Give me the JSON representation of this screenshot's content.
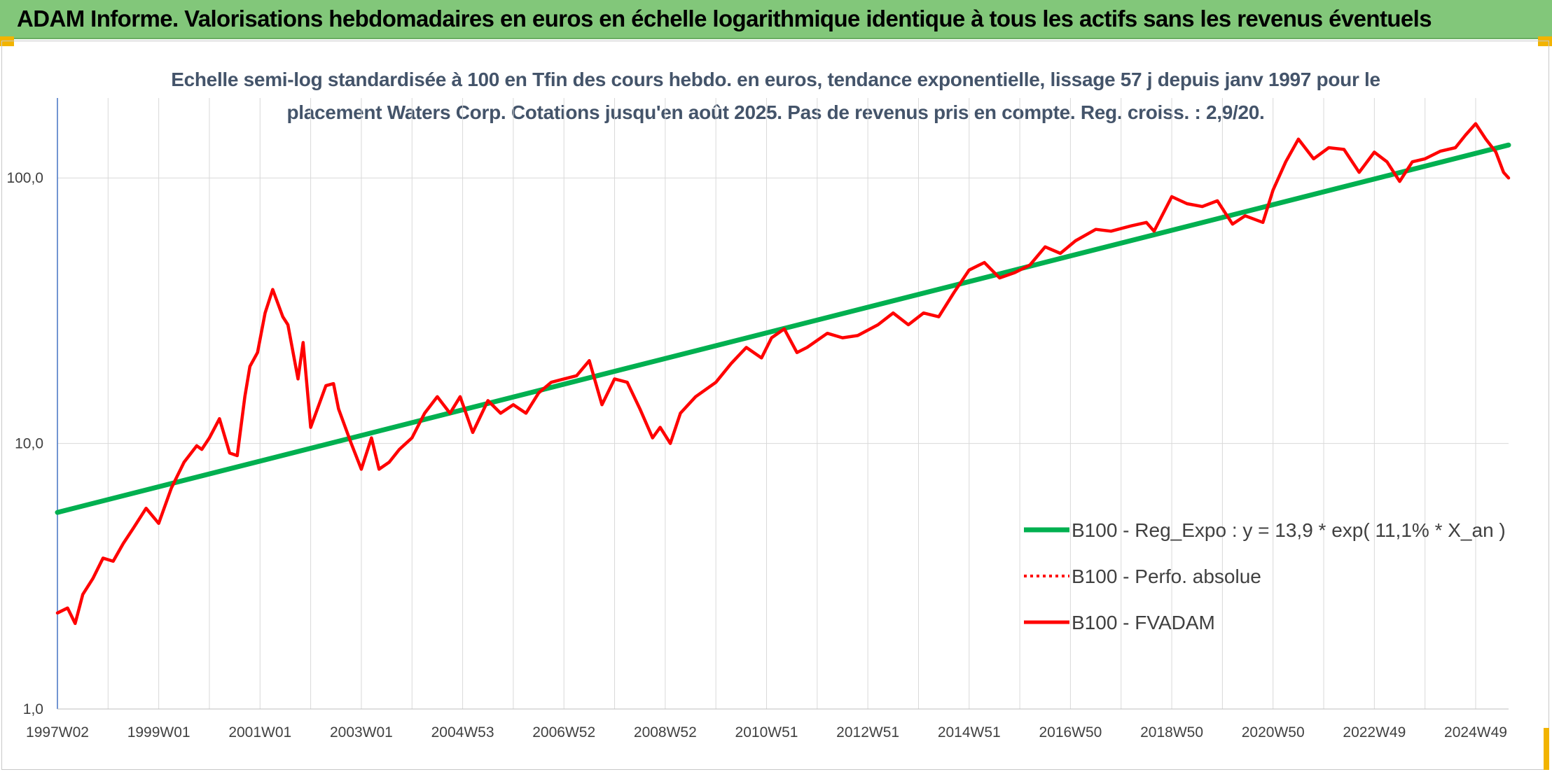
{
  "banner": {
    "title": "ADAM Informe. Valorisations hebdomadaires en euros en échelle logarithmique identique à tous les actifs sans les revenus éventuels"
  },
  "colors": {
    "banner_bg": "#82c77a",
    "accent_orange": "#f2b400",
    "fvadam_red": "#ff0000",
    "regression_green": "#00b050",
    "title_text": "#44546a"
  },
  "chart_data": {
    "type": "line",
    "title": "Echelle semi-log standardisée à 100 en Tfin des cours hebdo. en euros, tendance exponentielle, lissage 57 j depuis janv 1997 pour le placement Waters Corp. Cotations jusqu'en août 2025. Pas de revenus pris en compte. Reg. croiss. : 2,9/20.",
    "y_scale": "log",
    "ylim": [
      1,
      200
    ],
    "y_ticks": [
      {
        "value": 1,
        "label": "1,0"
      },
      {
        "value": 10,
        "label": "10,0"
      },
      {
        "value": 100,
        "label": "100,0"
      }
    ],
    "x_range": [
      1997.0,
      2025.65
    ],
    "x_ticks": [
      {
        "x": 1997.0,
        "label": "1997W02"
      },
      {
        "x": 1999.0,
        "label": "1999W01"
      },
      {
        "x": 2001.0,
        "label": "2001W01"
      },
      {
        "x": 2003.0,
        "label": "2003W01"
      },
      {
        "x": 2005.0,
        "label": "2004W53"
      },
      {
        "x": 2007.0,
        "label": "2006W52"
      },
      {
        "x": 2009.0,
        "label": "2008W52"
      },
      {
        "x": 2011.0,
        "label": "2010W51"
      },
      {
        "x": 2013.0,
        "label": "2012W51"
      },
      {
        "x": 2015.0,
        "label": "2014W51"
      },
      {
        "x": 2017.0,
        "label": "2016W50"
      },
      {
        "x": 2019.0,
        "label": "2018W50"
      },
      {
        "x": 2021.0,
        "label": "2020W50"
      },
      {
        "x": 2023.0,
        "label": "2022W49"
      },
      {
        "x": 2025.0,
        "label": "2024W49"
      }
    ],
    "grid": "vertical-and-horizontal",
    "legend_position": "bottom-right",
    "series": [
      {
        "name": "B100 - Reg_Expo : y = 13,9 * exp( 11,1% *  X_an )",
        "color": "#00b050",
        "style": "solid",
        "x": [
          1997.0,
          2025.65
        ],
        "y": [
          5.5,
          133
        ]
      },
      {
        "name": "B100 - Perfo. absolue",
        "color": "#ff0000",
        "style": "dotted",
        "x": [],
        "y": []
      },
      {
        "name": "B100 - FVADAM",
        "color": "#ff0000",
        "style": "solid",
        "x": [
          1997.0,
          1997.2,
          1997.35,
          1997.5,
          1997.7,
          1997.9,
          1998.1,
          1998.3,
          1998.5,
          1998.75,
          1999.0,
          1999.25,
          1999.5,
          1999.75,
          1999.85,
          2000.0,
          2000.2,
          2000.4,
          2000.55,
          2000.7,
          2000.8,
          2000.95,
          2001.1,
          2001.25,
          2001.45,
          2001.55,
          2001.75,
          2001.85,
          2002.0,
          2002.3,
          2002.45,
          2002.55,
          2002.8,
          2003.0,
          2003.2,
          2003.35,
          2003.55,
          2003.75,
          2004.0,
          2004.25,
          2004.5,
          2004.75,
          2004.95,
          2005.2,
          2005.5,
          2005.75,
          2006.0,
          2006.25,
          2006.5,
          2006.75,
          2007.0,
          2007.25,
          2007.5,
          2007.75,
          2008.0,
          2008.25,
          2008.5,
          2008.75,
          2008.9,
          2009.1,
          2009.3,
          2009.6,
          2010.0,
          2010.3,
          2010.6,
          2010.9,
          2011.1,
          2011.35,
          2011.6,
          2011.8,
          2012.2,
          2012.5,
          2012.8,
          2013.2,
          2013.5,
          2013.8,
          2014.1,
          2014.4,
          2014.7,
          2015.0,
          2015.3,
          2015.6,
          2015.9,
          2016.2,
          2016.5,
          2016.8,
          2017.1,
          2017.5,
          2017.8,
          2018.2,
          2018.5,
          2018.65,
          2019.0,
          2019.3,
          2019.6,
          2019.9,
          2020.2,
          2020.45,
          2020.8,
          2021.0,
          2021.25,
          2021.5,
          2021.8,
          2022.1,
          2022.4,
          2022.7,
          2023.0,
          2023.25,
          2023.5,
          2023.75,
          2024.0,
          2024.3,
          2024.6,
          2024.8,
          2025.0,
          2025.2,
          2025.4,
          2025.55,
          2025.65
        ],
        "y": [
          2.3,
          2.4,
          2.1,
          2.7,
          3.1,
          3.7,
          3.6,
          4.2,
          4.8,
          5.7,
          5.0,
          6.8,
          8.5,
          9.8,
          9.5,
          10.5,
          12.4,
          9.2,
          9.0,
          15.0,
          19.5,
          22.0,
          31.0,
          38.0,
          30.0,
          28.0,
          17.5,
          24.0,
          11.5,
          16.5,
          16.8,
          13.5,
          10.0,
          8.0,
          10.5,
          8.0,
          8.5,
          9.5,
          10.5,
          13.0,
          15.0,
          13.0,
          15.0,
          11.0,
          14.5,
          13.0,
          14.0,
          13.0,
          15.5,
          17.0,
          17.5,
          18.0,
          20.5,
          14.0,
          17.5,
          17.0,
          13.5,
          10.5,
          11.5,
          10.0,
          13.0,
          15.0,
          17.0,
          20.0,
          23.0,
          21.0,
          25.0,
          27.0,
          22.0,
          23.0,
          26.0,
          25.0,
          25.5,
          28.0,
          31.0,
          28.0,
          31.0,
          30.0,
          37.0,
          45.0,
          48.0,
          42.0,
          44.0,
          47.0,
          55.0,
          52.0,
          58.0,
          64.0,
          63.0,
          66.0,
          68.0,
          63.0,
          85.0,
          80.0,
          78.0,
          82.0,
          67.0,
          72.0,
          68.0,
          90.0,
          115.0,
          140.0,
          118.0,
          130.0,
          128.0,
          105.0,
          125.0,
          115.0,
          97.0,
          115.0,
          118.0,
          126.0,
          130.0,
          145.0,
          160.0,
          140.0,
          125.0,
          105.0,
          100.0
        ]
      }
    ]
  }
}
